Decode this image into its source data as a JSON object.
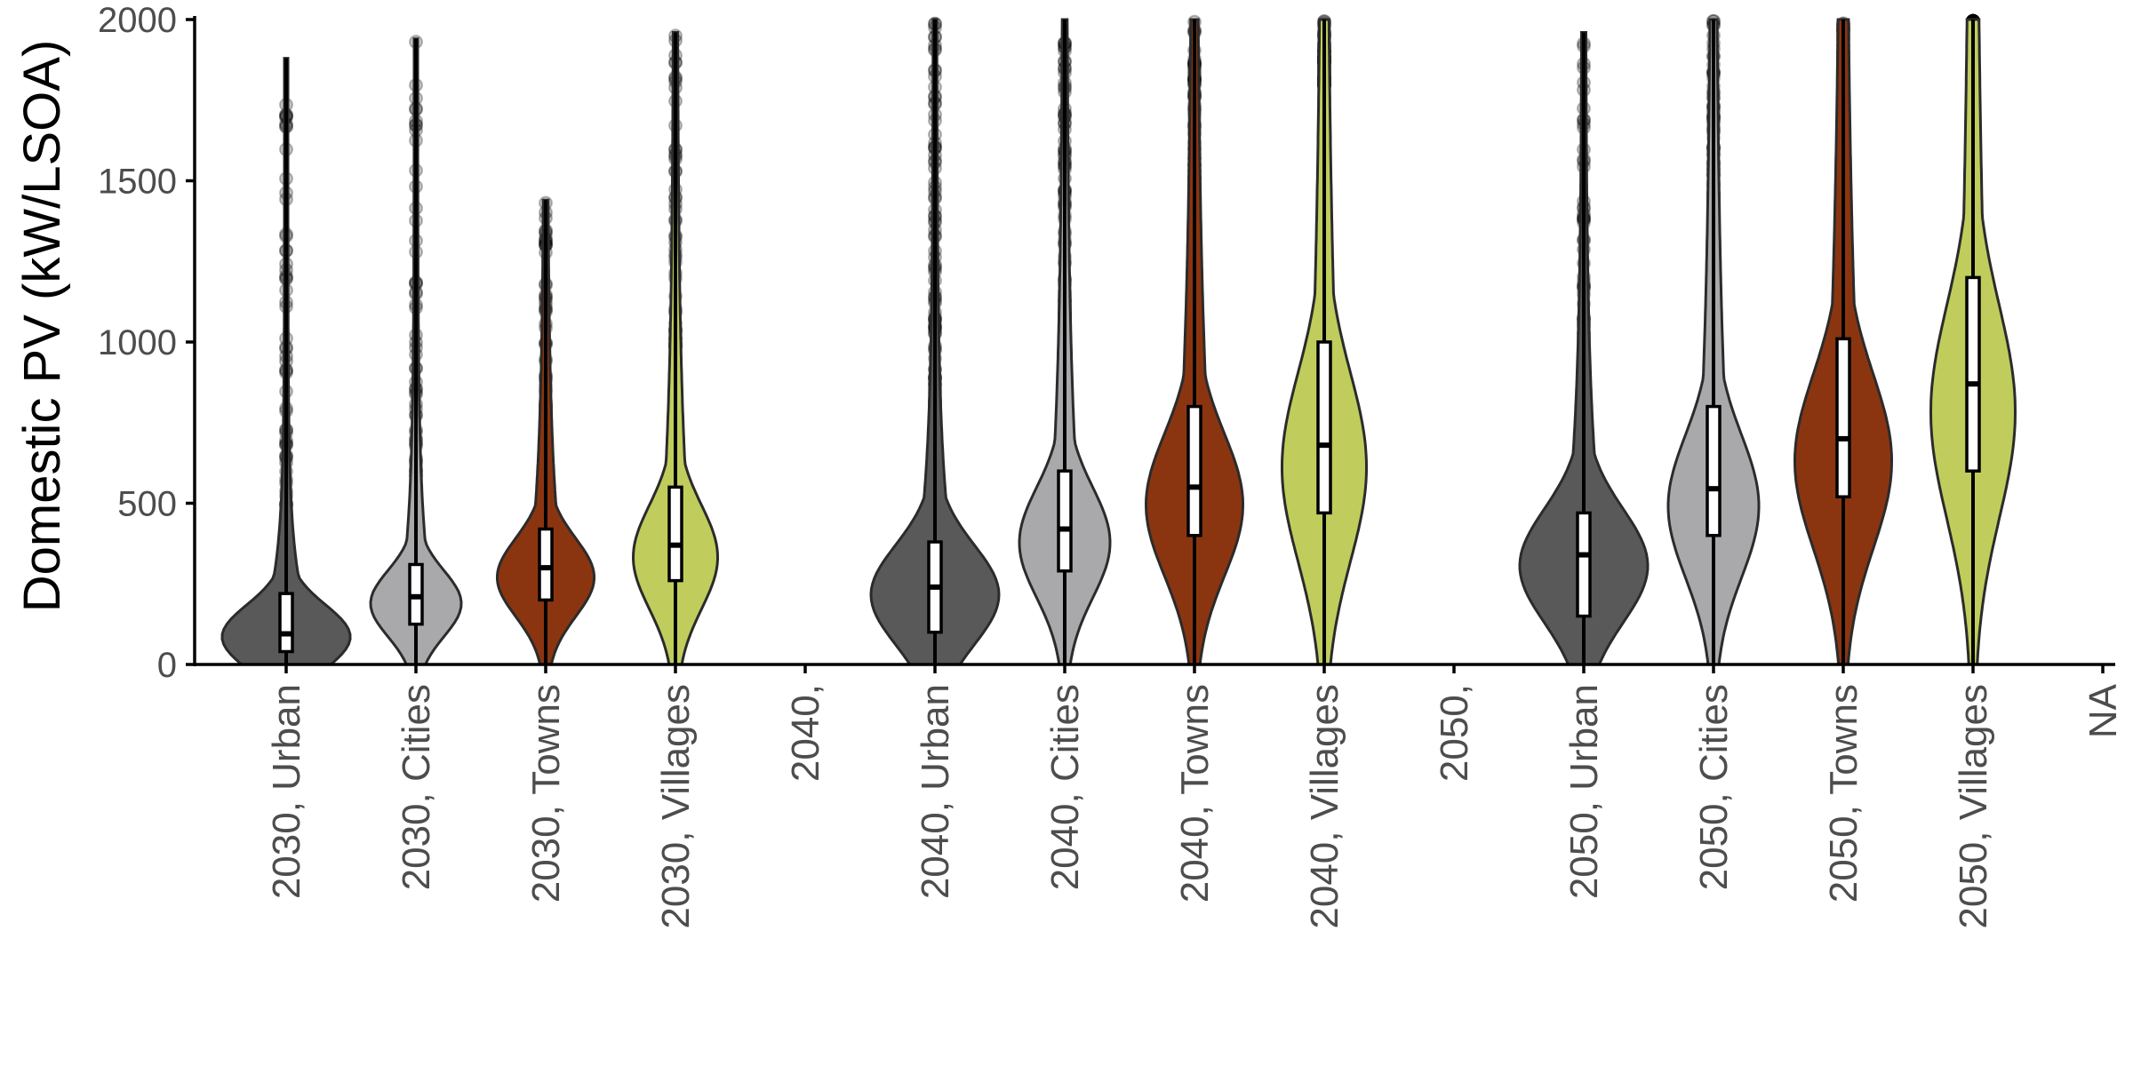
{
  "chart_data": {
    "type": "violin",
    "ylabel": "Domestic PV (kW/LSOA)",
    "ylim": [
      0,
      2000
    ],
    "yticks": [
      0,
      500,
      1000,
      1500,
      2000
    ],
    "grid": false,
    "legend": "none",
    "categories": [
      {
        "label": "2030,   Urban",
        "group": "Urban",
        "year": "2030",
        "min": 0,
        "q1": 40,
        "median": 95,
        "q3": 220,
        "whisker_high": 1880,
        "outlier_max": 1890
      },
      {
        "label": "2030,   Cities",
        "group": "Cities",
        "year": "2030",
        "min": 0,
        "q1": 125,
        "median": 210,
        "q3": 310,
        "whisker_high": 1940,
        "outlier_max": 1940
      },
      {
        "label": "2030,   Towns",
        "group": "Towns",
        "year": "2030",
        "min": 0,
        "q1": 200,
        "median": 300,
        "q3": 420,
        "whisker_high": 1440,
        "outlier_max": 1440
      },
      {
        "label": "2030,   Villages",
        "group": "Villages",
        "year": "2030",
        "min": 0,
        "q1": 260,
        "median": 370,
        "q3": 550,
        "whisker_high": 1960,
        "outlier_max": 1960
      },
      {
        "label": "2040,",
        "group": null,
        "year": "2040"
      },
      {
        "label": "2040,   Urban",
        "group": "Urban",
        "year": "2040",
        "min": 0,
        "q1": 100,
        "median": 240,
        "q3": 380,
        "whisker_high": 2000,
        "outlier_max": 2000
      },
      {
        "label": "2040,   Cities",
        "group": "Cities",
        "year": "2040",
        "min": 0,
        "q1": 290,
        "median": 420,
        "q3": 600,
        "whisker_high": 2000,
        "outlier_max": 2000
      },
      {
        "label": "2040,   Towns",
        "group": "Towns",
        "year": "2040",
        "min": 0,
        "q1": 400,
        "median": 550,
        "q3": 800,
        "whisker_high": 2000,
        "outlier_max": 2000
      },
      {
        "label": "2040,   Villages",
        "group": "Villages",
        "year": "2040",
        "min": 0,
        "q1": 470,
        "median": 680,
        "q3": 1000,
        "whisker_high": 2000,
        "outlier_max": 2000
      },
      {
        "label": "2050,",
        "group": null,
        "year": "2050"
      },
      {
        "label": "2050,   Urban",
        "group": "Urban",
        "year": "2050",
        "min": 0,
        "q1": 150,
        "median": 340,
        "q3": 470,
        "whisker_high": 1960,
        "outlier_max": 1960
      },
      {
        "label": "2050,   Cities",
        "group": "Cities",
        "year": "2050",
        "min": 0,
        "q1": 400,
        "median": 545,
        "q3": 800,
        "whisker_high": 2000,
        "outlier_max": 2000
      },
      {
        "label": "2050,   Towns",
        "group": "Towns",
        "year": "2050",
        "min": 0,
        "q1": 520,
        "median": 700,
        "q3": 1010,
        "whisker_high": 2000,
        "outlier_max": 2000
      },
      {
        "label": "2050,   Villages",
        "group": "Villages",
        "year": "2050",
        "min": 0,
        "q1": 600,
        "median": 870,
        "q3": 1200,
        "whisker_high": 2000,
        "outlier_max": 2000
      },
      {
        "label": "NA",
        "group": null,
        "year": null
      }
    ],
    "colors": {
      "Urban": "#595959",
      "Cities": "#a9a9ac",
      "Towns": "#8b3510",
      "Villages": "#c0cd5c",
      "stroke": "#2b2b2b",
      "axis": "#000000",
      "outlier": "#000000"
    }
  }
}
